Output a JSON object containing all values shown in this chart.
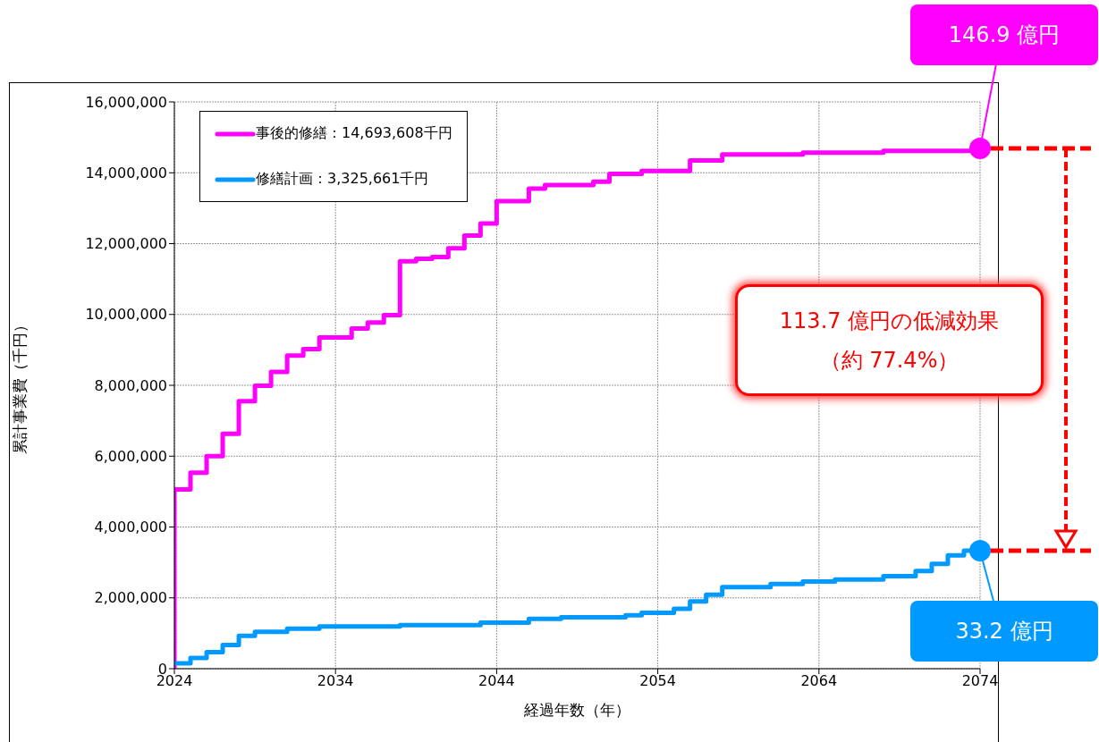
{
  "chart_data": {
    "type": "step",
    "xlabel": "経過年数（年）",
    "ylabel": "累計事業費（千円）",
    "xlim": [
      2024,
      2074
    ],
    "xticks": [
      2024,
      2034,
      2044,
      2054,
      2064,
      2074
    ],
    "ylim": [
      0,
      16000000
    ],
    "yticks": [
      0,
      {
        "value": 2000000,
        "label": "2,000,000"
      },
      {
        "value": 4000000,
        "label": "4,000,000"
      },
      {
        "value": 6000000,
        "label": "6,000,000"
      },
      {
        "value": 8000000,
        "label": "8,000,000"
      },
      {
        "value": 10000000,
        "label": "10,000,000"
      },
      {
        "value": 12000000,
        "label": "12,000,000"
      },
      {
        "value": 14000000,
        "label": "14,000,000"
      },
      {
        "value": 16000000,
        "label": "16,000,000"
      }
    ],
    "grid": true,
    "legend": "top left",
    "marker": "none",
    "line_style": "solid",
    "series": [
      {
        "name": "事後的修繕：14,693,608千円",
        "color": "#ff00ff",
        "x": [
          2024,
          2024,
          2025,
          2026,
          2027,
          2028,
          2029,
          2030,
          2031,
          2032,
          2033,
          2035,
          2036,
          2037,
          2038,
          2039,
          2040,
          2041,
          2042,
          2043,
          2044,
          2046,
          2047,
          2050,
          2051,
          2053,
          2056,
          2058,
          2063,
          2068,
          2074
        ],
        "values": [
          0,
          5060000,
          5530000,
          6000000,
          6630000,
          7550000,
          7990000,
          8380000,
          8840000,
          9020000,
          9350000,
          9600000,
          9770000,
          9980000,
          11500000,
          11570000,
          11620000,
          11870000,
          12230000,
          12570000,
          13200000,
          13550000,
          13650000,
          13750000,
          13970000,
          14050000,
          14350000,
          14520000,
          14570000,
          14620000,
          14690000
        ]
      },
      {
        "name": "修繕計画：3,325,661千円",
        "color": "#0099ff",
        "x": [
          2024,
          2025,
          2026,
          2027,
          2028,
          2029,
          2031,
          2033,
          2038,
          2043,
          2046,
          2048,
          2052,
          2053,
          2055,
          2056,
          2057,
          2058,
          2061,
          2063,
          2065,
          2068,
          2070,
          2071,
          2072,
          2073,
          2074
        ],
        "values": [
          150000,
          300000,
          470000,
          670000,
          930000,
          1040000,
          1130000,
          1190000,
          1230000,
          1300000,
          1410000,
          1450000,
          1510000,
          1580000,
          1690000,
          1900000,
          2090000,
          2300000,
          2390000,
          2460000,
          2520000,
          2610000,
          2760000,
          2960000,
          3200000,
          3330000,
          3330000
        ]
      }
    ],
    "annotations": [
      {
        "text": "146.9 億円",
        "x": 2074,
        "y": 14690000
      },
      {
        "text": "33.2 億円",
        "x": 2074,
        "y": 3330000
      },
      "113.7 億円の低減効果",
      "（約 77.4%）"
    ]
  }
}
